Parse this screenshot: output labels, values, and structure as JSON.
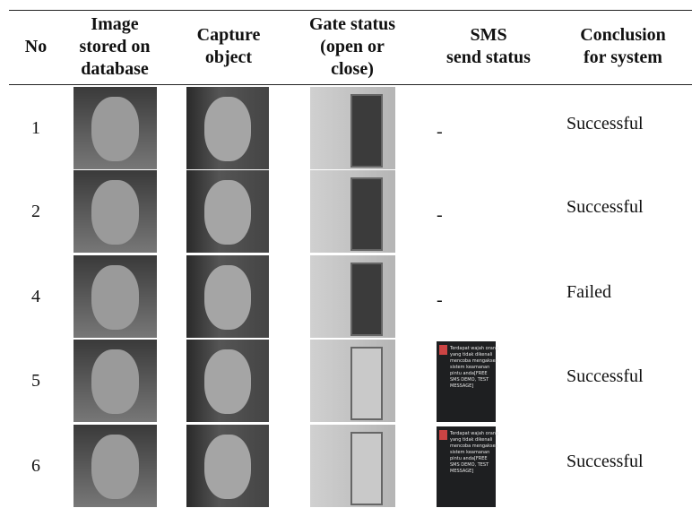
{
  "table": {
    "header": [
      [
        "No"
      ],
      [
        "Image",
        "stored on",
        "database"
      ],
      [
        "Capture",
        "object"
      ],
      [
        "Gate status",
        "(open or",
        "close)"
      ],
      [
        "SMS",
        "send status"
      ],
      [
        "Conclusion",
        "for system"
      ]
    ],
    "rows": [
      {
        "no": "1",
        "sms_status": "-",
        "conclusion": "Successful"
      },
      {
        "no": "2",
        "sms_status": "-",
        "conclusion": "Successful"
      },
      {
        "no": "4",
        "sms_status": "-",
        "conclusion": "Failed"
      },
      {
        "no": "5",
        "sms_message": [
          "Terdapat wajah orang",
          "yang tidak dikenali",
          "mencoba mengakses",
          "sistem keamanan",
          "pintu anda[FREE",
          "SMS DEMO, TEST",
          "MESSAGE]"
        ],
        "conclusion": "Successful"
      },
      {
        "no": "6",
        "sms_message": [
          "Terdapat wajah orang",
          "yang tidak dikenali",
          "mencoba mengakses",
          "sistem keamanan",
          "pintu anda[FREE",
          "SMS DEMO, TEST",
          "MESSAGE]"
        ],
        "conclusion": "Successful"
      }
    ]
  }
}
